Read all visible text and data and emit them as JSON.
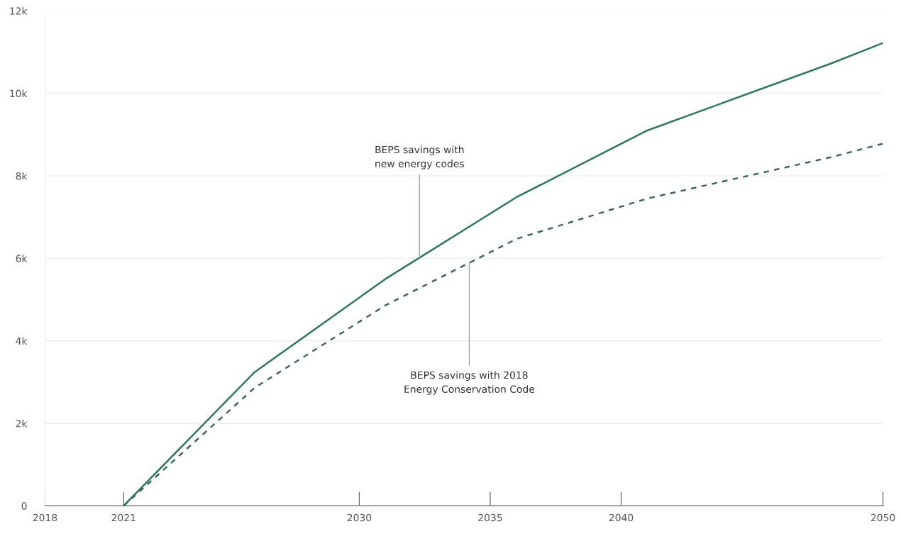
{
  "chart_data": {
    "type": "line",
    "xlim": [
      2018,
      2050
    ],
    "xticks": [
      2018,
      2021,
      2030,
      2035,
      2040,
      2050
    ],
    "ylim": [
      0,
      12000
    ],
    "yticks": [
      {
        "value": 0,
        "label": "0"
      },
      {
        "value": 2000,
        "label": "2k"
      },
      {
        "value": 4000,
        "label": "4k"
      },
      {
        "value": 6000,
        "label": "6k"
      },
      {
        "value": 8000,
        "label": "8k"
      },
      {
        "value": 10000,
        "label": "10k"
      },
      {
        "value": 12000,
        "label": "12k"
      }
    ],
    "grid": "y",
    "marker": "none",
    "series": [
      {
        "color": "#2e7a58",
        "line_style": "solid",
        "x": [
          2021,
          2026,
          2031,
          2036,
          2041,
          2048,
          2050
        ],
        "values": [
          0,
          3240,
          5500,
          7480,
          9100,
          10720,
          11220
        ]
      },
      {
        "color": "#3d6a55",
        "line_style": "dashed",
        "x": [
          2021,
          2026,
          2031,
          2036,
          2041,
          2048,
          2050
        ],
        "values": [
          0,
          2860,
          4860,
          6470,
          7450,
          8450,
          8780
        ]
      }
    ],
    "annotations": [
      {
        "text": "BEPS savings with\nnew energy codes",
        "x": 2032.3,
        "y": 6010
      },
      {
        "text": "BEPS savings with 2018\nEnergy Conservation Code",
        "x": 2034.2,
        "y": 5890
      }
    ]
  }
}
